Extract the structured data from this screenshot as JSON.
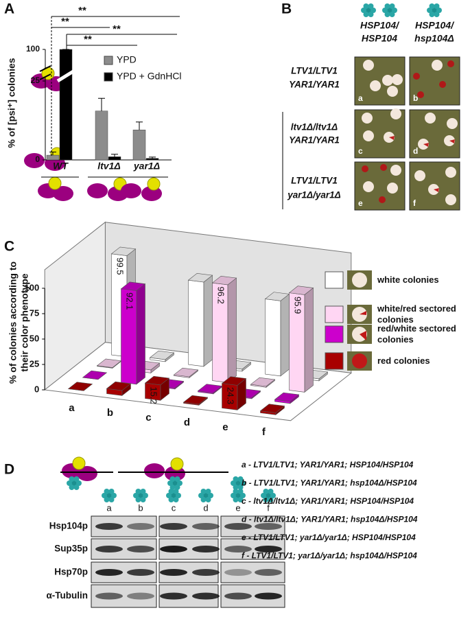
{
  "panel_labels": [
    "A",
    "B",
    "C",
    "D"
  ],
  "chart_data": [
    {
      "type": "bar",
      "ylabel": "% of [psi⁺] colonies",
      "categories": [
        "WT",
        "ltv1Δ",
        "yar1Δ"
      ],
      "series": [
        {
          "name": "YPD",
          "color": "#8c8c8c",
          "values": [
            1.5,
            15.5,
            9.5
          ],
          "errors": [
            1,
            4,
            2.5
          ]
        },
        {
          "name": "YPD + GdnHCl",
          "color": "#000000",
          "values": [
            100,
            1,
            0.5
          ],
          "errors": [
            0,
            0.8,
            0.4
          ]
        }
      ],
      "ylim": [
        0,
        100
      ],
      "yticks": [
        0,
        25,
        100
      ],
      "axis_break": [
        30,
        95
      ],
      "annotations": [
        "**",
        "**",
        "**",
        "**"
      ]
    },
    {
      "type": "bar3d",
      "ylabel": [
        "% of colonies according to",
        "their color phenotype"
      ],
      "categories": [
        "a",
        "b",
        "c",
        "d",
        "e",
        "f"
      ],
      "series": [
        {
          "name": "white colonies",
          "color": "#ffffff",
          "values": [
            99.5,
            2,
            83,
            2,
            74,
            2
          ],
          "value_labels": [
            "99.5",
            null,
            null,
            null,
            null,
            null
          ]
        },
        {
          "name": "white/red sectored colonies",
          "color": "#ffd6f3",
          "values": [
            0.5,
            3,
            1,
            96.2,
            1,
            95.9
          ],
          "value_labels": [
            null,
            null,
            null,
            "96.2",
            null,
            "95.9"
          ]
        },
        {
          "name": "red/white sectored colonies",
          "color": "#cc00cc",
          "values": [
            0,
            92.1,
            1,
            1,
            1,
            2
          ],
          "value_labels": [
            null,
            "92.1",
            null,
            null,
            null,
            null
          ]
        },
        {
          "name": "red colonies",
          "color": "#a80000",
          "values": [
            0,
            5,
            15.2,
            1,
            24.3,
            2
          ],
          "value_labels": [
            null,
            null,
            "15.2",
            null,
            "24.3",
            null
          ]
        }
      ],
      "ylim": [
        0,
        100
      ],
      "yticks": [
        0,
        25,
        50,
        75,
        100
      ]
    }
  ],
  "panel_b": {
    "columns": [
      [
        "HSP104/",
        "HSP104"
      ],
      [
        "HSP104/",
        "hsp104Δ"
      ]
    ],
    "rows": [
      [
        "LTV1/LTV1",
        "YAR1/YAR1"
      ],
      [
        "ltv1Δ/ltv1Δ",
        "YAR1/YAR1"
      ],
      [
        "LTV1/LTV1",
        "yar1Δ/yar1Δ"
      ]
    ],
    "plates": [
      "a",
      "b",
      "c",
      "d",
      "e",
      "f"
    ]
  },
  "panel_d": {
    "lanes": [
      "a",
      "b",
      "c",
      "d",
      "e",
      "f"
    ],
    "blots": [
      "Hsp104p",
      "Sup35p",
      "Hsp70p",
      "α-Tubulin"
    ],
    "strains": [
      "a - LTV1/LTV1; YAR1/YAR1; HSP104/HSP104",
      "b - LTV1/LTV1; YAR1/YAR1; hsp104Δ/HSP104",
      "c - ltv1Δ/ltv1Δ; YAR1/YAR1; HSP104/HSP104",
      "d - ltv1Δ/ltv1Δ; YAR1/YAR1; hsp104Δ/HSP104",
      "e - LTV1/LTV1; yar1Δ/yar1Δ; HSP104/HSP104",
      "f - LTV1/LTV1; yar1Δ/yar1Δ; hsp104Δ/HSP104"
    ]
  }
}
